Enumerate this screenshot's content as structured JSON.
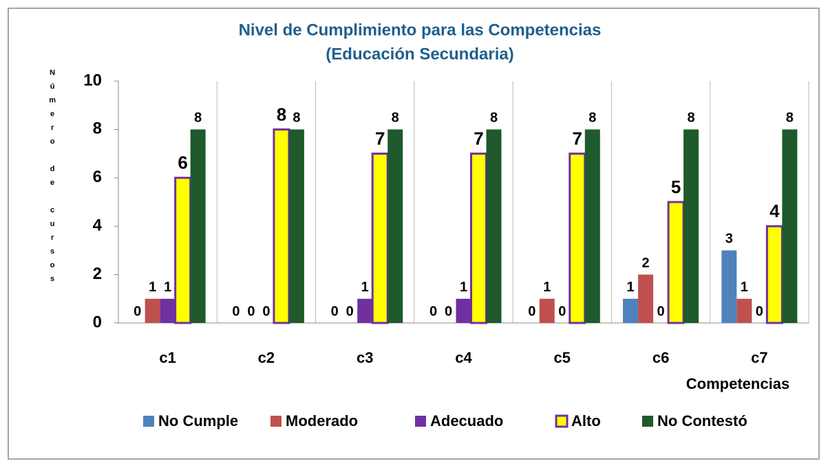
{
  "chart_data": {
    "type": "bar",
    "title": "Nivel de Cumplimiento para las Competencias",
    "subtitle": "(Educación Secundaria)",
    "y_label": "Número de cursos",
    "x_label": "Competencias",
    "categories": [
      "c1",
      "c2",
      "c3",
      "c4",
      "c5",
      "c6",
      "c7"
    ],
    "series": [
      {
        "name": "No Cumple",
        "color": "#4f81bd",
        "values": [
          0,
          0,
          0,
          0,
          0,
          1,
          3
        ]
      },
      {
        "name": "Moderado",
        "color": "#c0504d",
        "values": [
          1,
          0,
          0,
          0,
          1,
          2,
          1
        ]
      },
      {
        "name": "Adecuado",
        "color": "#7030a0",
        "values": [
          1,
          0,
          1,
          1,
          0,
          0,
          0
        ]
      },
      {
        "name": "Alto",
        "color": "#ffff00",
        "values": [
          6,
          8,
          7,
          7,
          7,
          5,
          4
        ]
      },
      {
        "name": "No Contestó",
        "color": "#1e5a2c",
        "values": [
          8,
          8,
          8,
          8,
          8,
          8,
          8
        ]
      }
    ],
    "ylim": [
      0,
      10
    ],
    "yticks": [
      0,
      2,
      4,
      6,
      8,
      10
    ],
    "grid": true
  }
}
